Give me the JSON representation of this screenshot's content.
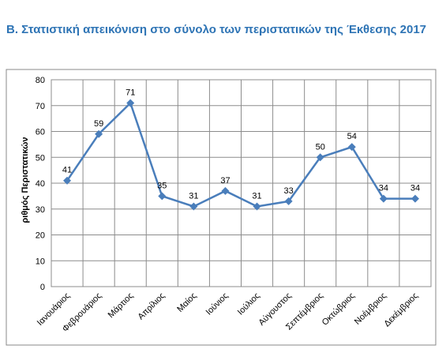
{
  "chart_data": {
    "type": "line",
    "title": "Β. Στατιστική απεικόνιση στο σύνολο των περιστατικών της  Έκθεσης 2017",
    "y_label": "ριθμός Περιστατικών",
    "categories": [
      "Ιανουάριος",
      "Φεβρουάριος",
      "Μάρτιος",
      "Απρίλιος",
      "Μαίος",
      "Ιούνιος",
      "Ιούλιος",
      "Αύγουστος",
      "Σεπτέμβριος",
      "Οκτώβριος",
      "Νοέμβριος",
      "Δεκέμβριος"
    ],
    "values": [
      41,
      59,
      71,
      35,
      31,
      37,
      31,
      33,
      50,
      54,
      34,
      34
    ],
    "color": "#4a7ebb",
    "ylim": [
      0,
      80
    ],
    "yticks": [
      0,
      10,
      20,
      30,
      40,
      50,
      60,
      70,
      80
    ],
    "grid": true
  }
}
